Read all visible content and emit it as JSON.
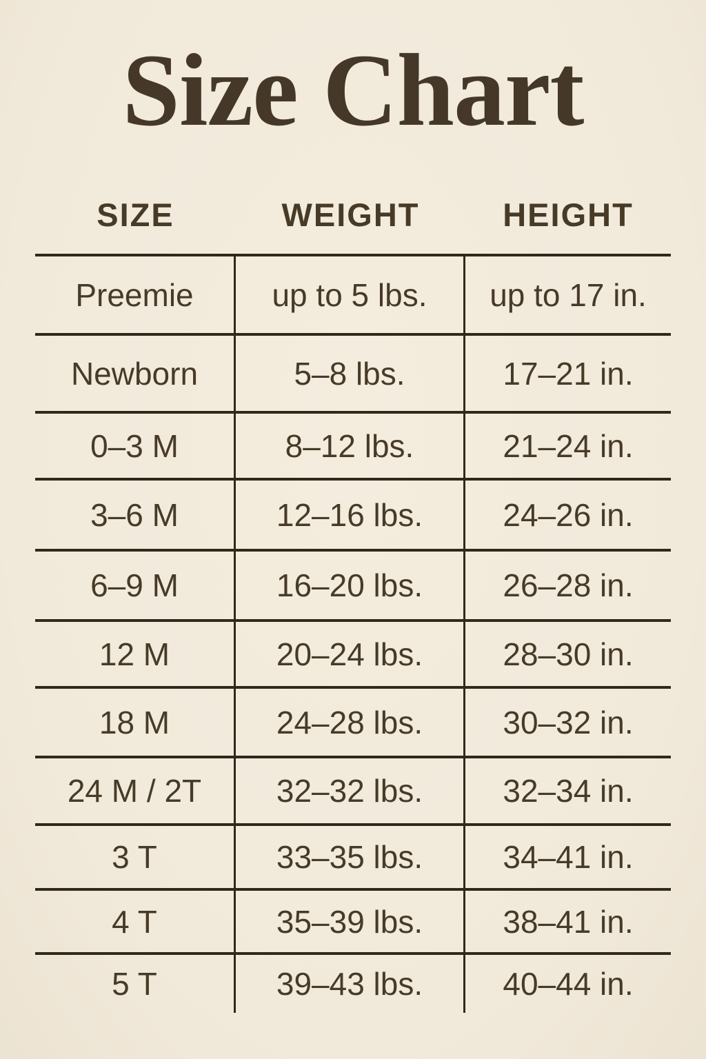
{
  "title": "Size Chart",
  "chart_data": {
    "type": "table",
    "title": "Size Chart",
    "columns": [
      "SIZE",
      "WEIGHT",
      "HEIGHT"
    ],
    "rows": [
      [
        "Preemie",
        "up to 5 lbs.",
        "up to 17 in."
      ],
      [
        "Newborn",
        "5–8 lbs.",
        "17–21 in."
      ],
      [
        "0–3 M",
        "8–12 lbs.",
        "21–24 in."
      ],
      [
        "3–6 M",
        "12–16 lbs.",
        "24–26 in."
      ],
      [
        "6–9 M",
        "16–20 lbs.",
        "26–28 in."
      ],
      [
        "12 M",
        "20–24 lbs.",
        "28–30 in."
      ],
      [
        "18 M",
        "24–28 lbs.",
        "30–32 in."
      ],
      [
        "24 M / 2T",
        "32–32 lbs.",
        "32–34 in."
      ],
      [
        "3 T",
        "33–35 lbs.",
        "34–41 in."
      ],
      [
        "4 T",
        "35–39 lbs.",
        "38–41 in."
      ],
      [
        "5 T",
        "39–43 lbs.",
        "40–44 in."
      ]
    ],
    "layout": {
      "grid": "horizontal rules between all rows, vertical rules between columns, no outer left/right/bottom border",
      "legend": "none"
    }
  },
  "colors": {
    "background": "#f2ebdc",
    "rule_line": "#31281a",
    "text": "#473b28",
    "title": "#453828"
  }
}
